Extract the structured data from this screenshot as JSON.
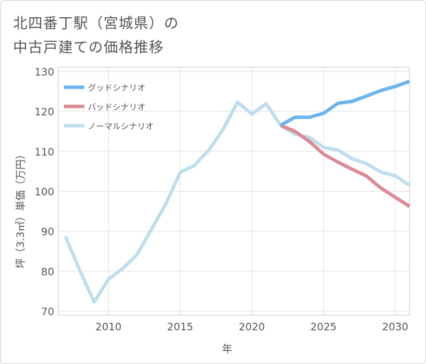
{
  "title": {
    "line1": "北四番丁駅（宮城県）の",
    "line2": "中古戸建ての価格推移"
  },
  "chart_data": {
    "type": "line",
    "xlabel": "年",
    "ylabel": "坪（3.3㎡）単価（万円）",
    "xlim": [
      2006.5,
      2031
    ],
    "ylim": [
      69,
      131
    ],
    "x_ticks": [
      2010,
      2015,
      2020,
      2025,
      2030
    ],
    "y_ticks": [
      70,
      80,
      90,
      100,
      110,
      120,
      130
    ],
    "grid": true,
    "legend_position": "top-left",
    "series": [
      {
        "name": "グッドシナリオ",
        "color": "#6cb4ee",
        "points": [
          [
            2022,
            116.5
          ],
          [
            2023,
            118.5
          ],
          [
            2024,
            118.5
          ],
          [
            2025,
            119.5
          ],
          [
            2026,
            122.0
          ],
          [
            2027,
            122.5
          ],
          [
            2028,
            123.8
          ],
          [
            2029,
            125.2
          ],
          [
            2030,
            126.2
          ],
          [
            2031,
            127.5
          ]
        ]
      },
      {
        "name": "バッドシナリオ",
        "color": "#dc8a93",
        "points": [
          [
            2022,
            116.5
          ],
          [
            2023,
            115.0
          ],
          [
            2024,
            112.5
          ],
          [
            2025,
            109.3
          ],
          [
            2026,
            107.3
          ],
          [
            2027,
            105.5
          ],
          [
            2028,
            103.8
          ],
          [
            2029,
            100.8
          ],
          [
            2030,
            98.5
          ],
          [
            2031,
            96.2
          ]
        ]
      },
      {
        "name": "ノーマルシナリオ",
        "color": "#bfdeed",
        "points": [
          [
            2007,
            88.7
          ],
          [
            2008,
            80.2
          ],
          [
            2009,
            72.3
          ],
          [
            2010,
            78.0
          ],
          [
            2011,
            80.7
          ],
          [
            2012,
            84.2
          ],
          [
            2013,
            90.5
          ],
          [
            2014,
            96.8
          ],
          [
            2015,
            104.7
          ],
          [
            2016,
            106.5
          ],
          [
            2017,
            110.3
          ],
          [
            2018,
            115.5
          ],
          [
            2019,
            122.3
          ],
          [
            2020,
            119.3
          ],
          [
            2021,
            121.9
          ],
          [
            2022,
            116.5
          ],
          [
            2023,
            114.3
          ],
          [
            2024,
            113.5
          ],
          [
            2025,
            111.0
          ],
          [
            2026,
            110.3
          ],
          [
            2027,
            108.1
          ],
          [
            2028,
            106.9
          ],
          [
            2029,
            104.8
          ],
          [
            2030,
            103.9
          ],
          [
            2031,
            101.5
          ]
        ]
      }
    ]
  }
}
